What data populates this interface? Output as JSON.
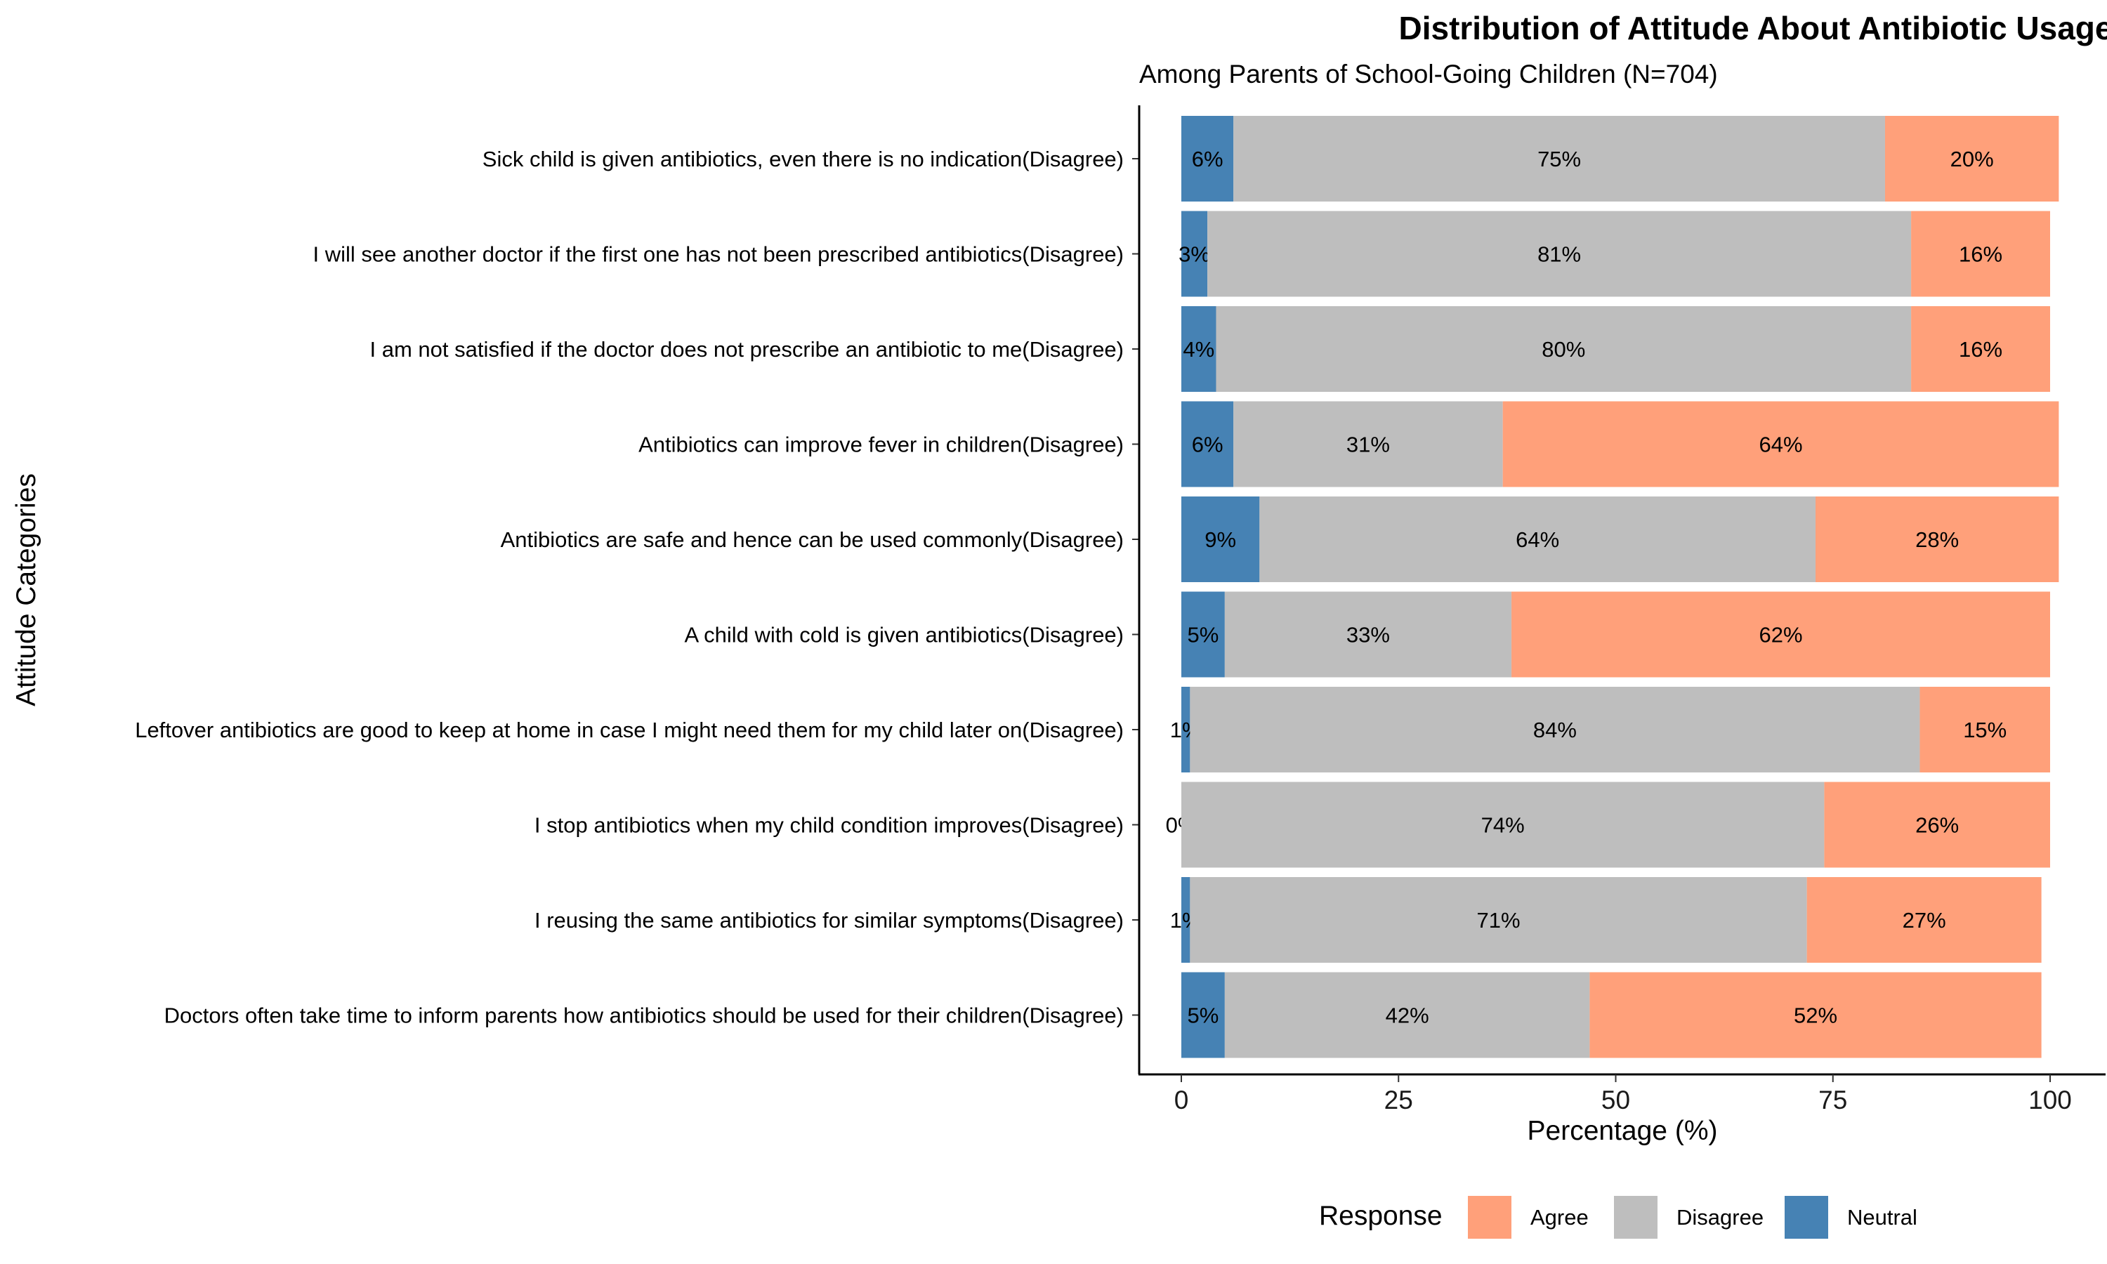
{
  "chart_data": {
    "type": "bar",
    "orientation": "horizontal",
    "stacked": true,
    "title": "Distribution of Attitude About Antibiotic Usage",
    "subtitle": "Among Parents of School-Going Children (N=704)",
    "xlabel": "Percentage (%)",
    "ylabel": "Attitude Categories",
    "xlim": [
      0,
      100
    ],
    "x_ticks": [
      0,
      25,
      50,
      75,
      100
    ],
    "grid": false,
    "legend": {
      "title": "Response",
      "position": "bottom",
      "entries": [
        "Agree",
        "Disagree",
        "Neutral"
      ]
    },
    "categories": [
      "Sick child is given antibiotics, even there is no indication(Disagree)",
      "I will see another doctor if the first one has not been prescribed antibiotics(Disagree)",
      "I am not satisfied if the doctor does not prescribe an antibiotic to me(Disagree)",
      "Antibiotics can improve fever in children(Disagree)",
      "Antibiotics are safe and hence can be used commonly(Disagree)",
      "A child with cold is given antibiotics(Disagree)",
      "Leftover antibiotics are good to keep at home in case I might need them for my child later on(Disagree)",
      "I stop antibiotics when my child condition improves(Disagree)",
      "I reusing the same antibiotics for similar symptoms(Disagree)",
      "Doctors often take time to inform parents how antibiotics should be used for their children(Disagree)"
    ],
    "series": [
      {
        "name": "Neutral",
        "color": "#4682b4",
        "values": [
          6,
          3,
          4,
          6,
          9,
          5,
          1,
          0,
          1,
          5
        ],
        "labels": [
          "6%",
          "3%",
          "4%",
          "6%",
          "9%",
          "5%",
          "1%",
          "0%",
          "1%",
          "5%"
        ]
      },
      {
        "name": "Disagree",
        "color": "#bebebe",
        "values": [
          75,
          81,
          80,
          31,
          64,
          33,
          84,
          74,
          71,
          42
        ],
        "labels": [
          "75%",
          "81%",
          "80%",
          "31%",
          "64%",
          "33%",
          "84%",
          "74%",
          "71%",
          "42%"
        ]
      },
      {
        "name": "Agree",
        "color": "#ffa07a",
        "values": [
          20,
          16,
          16,
          64,
          28,
          62,
          15,
          26,
          27,
          52
        ],
        "labels": [
          "20%",
          "16%",
          "16%",
          "64%",
          "28%",
          "62%",
          "15%",
          "26%",
          "27%",
          "52%"
        ]
      }
    ]
  }
}
